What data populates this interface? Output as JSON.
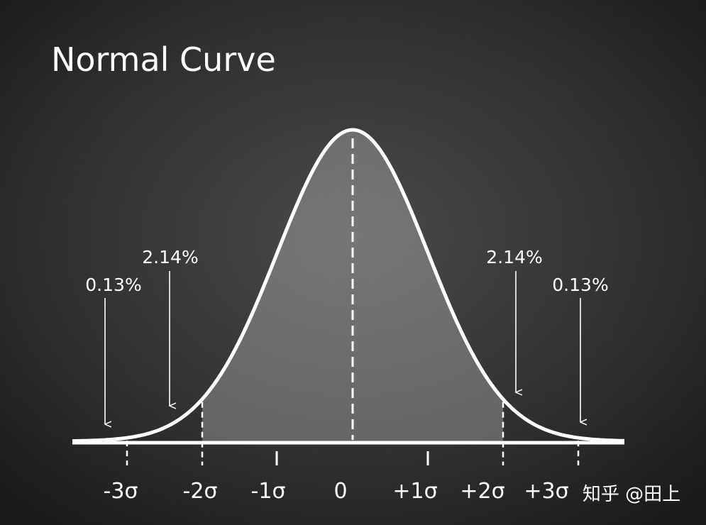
{
  "header": {
    "title": "Normal Curve"
  },
  "annotations": {
    "left_outer": "0.13%",
    "left_inner": "2.14%",
    "right_inner": "2.14%",
    "right_outer": "0.13%"
  },
  "axis_labels": [
    "-3σ",
    "-2σ",
    "-1σ",
    "0",
    "+1σ",
    "+2σ",
    "+3σ"
  ],
  "watermark": "知乎 @田上"
}
